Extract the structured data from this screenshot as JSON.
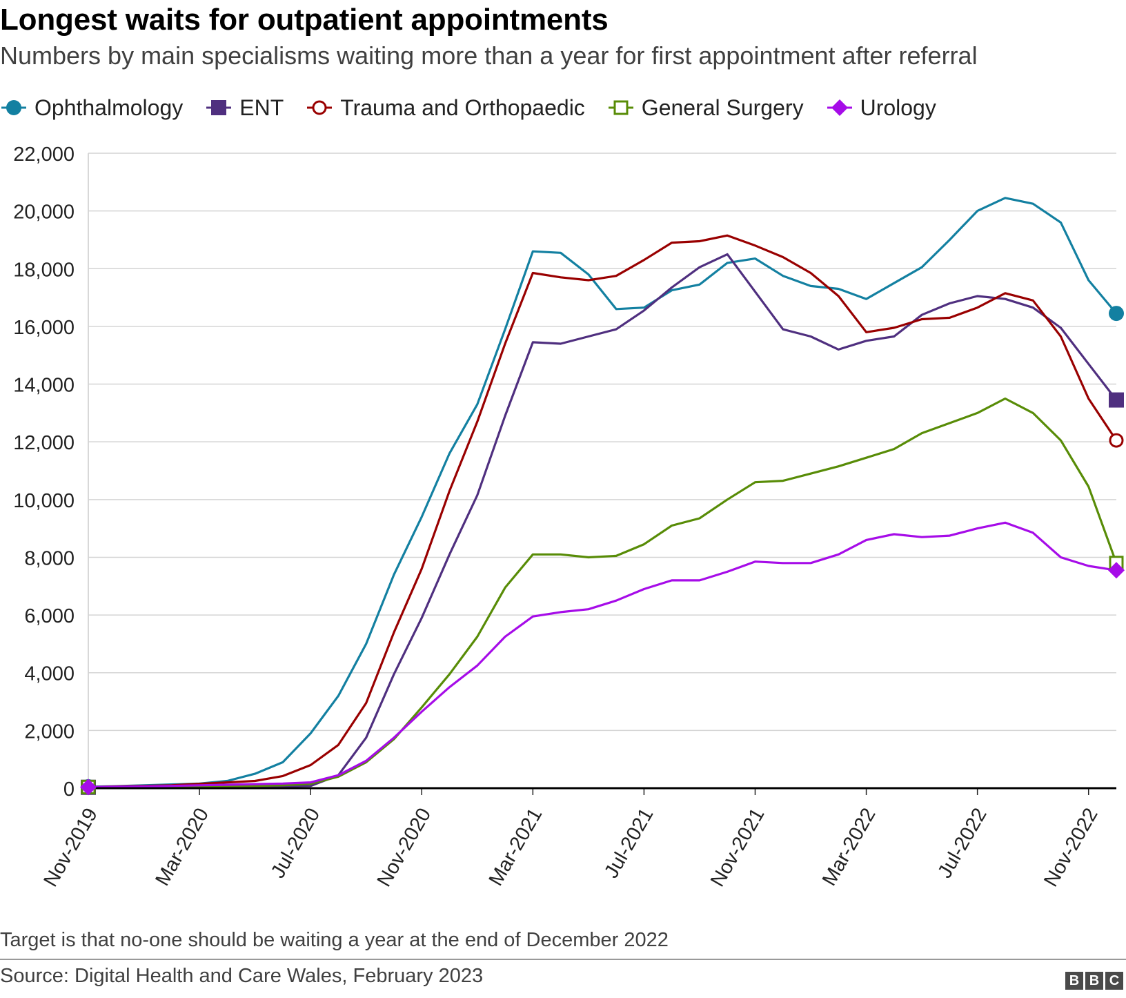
{
  "title": "Longest waits for outpatient appointments",
  "subtitle": "Numbers by main specialisms waiting more than a year for first appointment after referral",
  "note": "Target is that no-one should be waiting a year at the end of December 2022",
  "source": "Source: Digital Health and Care Wales, February 2023",
  "logo": [
    "B",
    "B",
    "C"
  ],
  "chart_data": {
    "type": "line",
    "title": "Longest waits for outpatient appointments",
    "xlabel": "",
    "ylabel": "",
    "ylim": [
      0,
      22000
    ],
    "yticks": [
      0,
      2000,
      4000,
      6000,
      8000,
      10000,
      12000,
      14000,
      16000,
      18000,
      20000,
      22000
    ],
    "ytick_labels": [
      "0",
      "2,000",
      "4,000",
      "6,000",
      "8,000",
      "10,000",
      "12,000",
      "14,000",
      "16,000",
      "18,000",
      "20,000",
      "22,000"
    ],
    "x": [
      "Nov-2019",
      "Dec-2019",
      "Jan-2020",
      "Feb-2020",
      "Mar-2020",
      "Apr-2020",
      "May-2020",
      "Jun-2020",
      "Jul-2020",
      "Aug-2020",
      "Sep-2020",
      "Oct-2020",
      "Nov-2020",
      "Dec-2020",
      "Jan-2021",
      "Feb-2021",
      "Mar-2021",
      "Apr-2021",
      "May-2021",
      "Jun-2021",
      "Jul-2021",
      "Aug-2021",
      "Sep-2021",
      "Oct-2021",
      "Nov-2021",
      "Dec-2021",
      "Jan-2022",
      "Feb-2022",
      "Mar-2022",
      "Apr-2022",
      "May-2022",
      "Jun-2022",
      "Jul-2022",
      "Aug-2022",
      "Sep-2022",
      "Oct-2022",
      "Nov-2022",
      "Dec-2022"
    ],
    "xtick_labels": [
      "Nov-2019",
      "Mar-2020",
      "Jul-2020",
      "Nov-2020",
      "Mar-2021",
      "Jul-2021",
      "Nov-2021",
      "Mar-2022",
      "Jul-2022",
      "Nov-2022"
    ],
    "grid": true,
    "legend_position": "top",
    "series": [
      {
        "name": "Ophthalmology",
        "color": "#1380A1",
        "marker": "circle-filled",
        "values": [
          50,
          70,
          100,
          130,
          160,
          250,
          500,
          900,
          1900,
          3200,
          5000,
          7400,
          9400,
          11600,
          13300,
          15900,
          18600,
          18550,
          17800,
          16600,
          16650,
          17250,
          17450,
          18200,
          18350,
          17750,
          17400,
          17300,
          16950,
          17500,
          18050,
          19000,
          20000,
          20450,
          20250,
          19600,
          17600,
          16450
        ]
      },
      {
        "name": "ENT",
        "color": "#4F2F7F",
        "marker": "square-filled",
        "values": [
          30,
          40,
          50,
          50,
          60,
          60,
          60,
          70,
          80,
          450,
          1750,
          3950,
          5900,
          8100,
          10150,
          12900,
          15450,
          15400,
          15650,
          15900,
          16550,
          17350,
          18050,
          18500,
          17200,
          15900,
          15650,
          15200,
          15500,
          15650,
          16400,
          16800,
          17050,
          16950,
          16650,
          15950,
          14700,
          13450
        ]
      },
      {
        "name": "Trauma and Orthopaedic",
        "color": "#990000",
        "marker": "circle-open",
        "values": [
          40,
          60,
          80,
          100,
          150,
          200,
          250,
          420,
          800,
          1500,
          2950,
          5400,
          7600,
          10300,
          12700,
          15400,
          17850,
          17700,
          17600,
          17750,
          18300,
          18900,
          18950,
          19150,
          18800,
          18400,
          17850,
          17050,
          15800,
          15950,
          16250,
          16300,
          16650,
          17150,
          16900,
          15650,
          13500,
          12050
        ]
      },
      {
        "name": "General Surgery",
        "color": "#588C07",
        "marker": "square-open",
        "values": [
          40,
          40,
          40,
          50,
          60,
          70,
          80,
          100,
          150,
          400,
          900,
          1700,
          2800,
          3950,
          5250,
          6950,
          8100,
          8100,
          8000,
          8050,
          8450,
          9100,
          9350,
          10000,
          10600,
          10650,
          10900,
          11150,
          11450,
          11750,
          12300,
          12650,
          13000,
          13500,
          13000,
          12050,
          10450,
          7800
        ]
      },
      {
        "name": "Urology",
        "color": "#A60CE8",
        "marker": "diamond-filled",
        "values": [
          40,
          50,
          60,
          80,
          100,
          120,
          140,
          160,
          200,
          450,
          950,
          1750,
          2650,
          3500,
          4250,
          5250,
          5950,
          6100,
          6200,
          6500,
          6900,
          7200,
          7200,
          7500,
          7850,
          7800,
          7800,
          8100,
          8600,
          8800,
          8700,
          8750,
          9000,
          9200,
          8850,
          8000,
          7700,
          7550
        ]
      }
    ]
  }
}
